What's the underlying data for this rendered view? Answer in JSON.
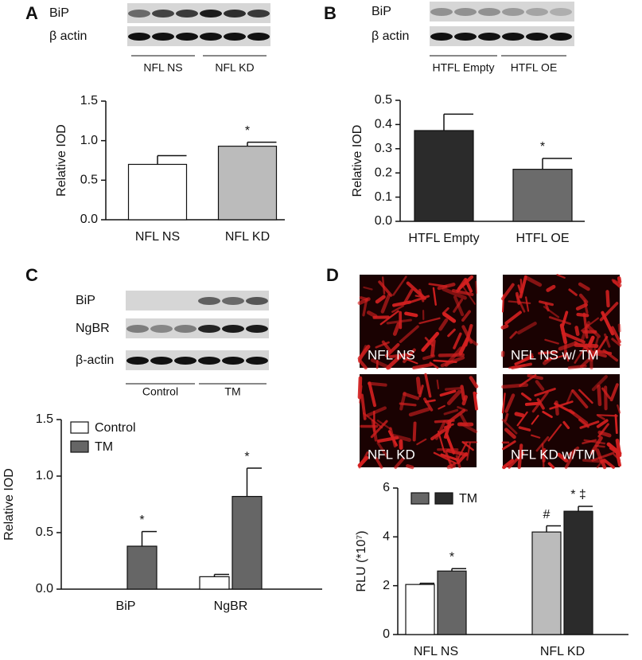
{
  "panels": [
    {
      "letter": "A",
      "blot_labels": [
        "BiP",
        "β actin"
      ],
      "group_labels": [
        "NFL NS",
        "NFL KD"
      ]
    },
    {
      "letter": "B",
      "blot_labels": [
        "BiP",
        "β actin"
      ],
      "group_labels": [
        "HTFL Empty",
        "HTFL OE"
      ]
    },
    {
      "letter": "C",
      "blot_labels": [
        "BiP",
        "NgBR",
        "β-actin"
      ],
      "group_labels": [
        "Control",
        "TM"
      ]
    },
    {
      "letter": "D",
      "image_labels": [
        "NFL NS",
        "NFL NS w/ TM",
        "NFL KD",
        "NFL KD w/TM"
      ]
    }
  ],
  "chart_data": [
    {
      "type": "bar",
      "ylabel": "Relative IOD",
      "categories": [
        "NFL NS",
        "NFL KD"
      ],
      "values": [
        0.7,
        0.93
      ],
      "errors": [
        0.11,
        0.05
      ],
      "colors": [
        "#ffffff",
        "#bbbbbb"
      ],
      "significance": [
        null,
        "*"
      ],
      "ylim": [
        0,
        1.5
      ],
      "yticks": [
        {
          "value": 0,
          "label": "0.0"
        },
        {
          "value": 0.5,
          "label": "0.5"
        },
        {
          "value": 1,
          "label": "1.0"
        },
        {
          "value": 1.5,
          "label": "1.5"
        }
      ]
    },
    {
      "type": "bar",
      "ylabel": "Relative IOD",
      "categories": [
        "HTFL Empty",
        "HTFL OE"
      ],
      "values": [
        0.375,
        0.215
      ],
      "errors": [
        0.068,
        0.045
      ],
      "colors": [
        "#2b2b2b",
        "#6b6b6b"
      ],
      "significance": [
        null,
        "*"
      ],
      "ylim": [
        0,
        0.5
      ],
      "yticks": [
        {
          "value": 0,
          "label": "0.0"
        },
        {
          "value": 0.1,
          "label": "0.1"
        },
        {
          "value": 0.2,
          "label": "0.2"
        },
        {
          "value": 0.3,
          "label": "0.3"
        },
        {
          "value": 0.4,
          "label": "0.4"
        },
        {
          "value": 0.5,
          "label": "0.5"
        }
      ]
    },
    {
      "type": "bar",
      "ylabel": "Relative IOD",
      "categories": [
        "BiP",
        "NgBR"
      ],
      "legend": "top-left",
      "series": [
        {
          "name": "Control",
          "color": "#ffffff",
          "values": [
            0,
            0.11
          ],
          "errors": [
            0,
            0.02
          ],
          "significance": [
            null,
            null
          ]
        },
        {
          "name": "TM",
          "color": "#666666",
          "values": [
            0.38,
            0.82
          ],
          "errors": [
            0.13,
            0.25
          ],
          "significance": [
            "*",
            "*"
          ]
        }
      ],
      "ylim": [
        0,
        1.5
      ],
      "yticks": [
        {
          "value": 0,
          "label": "0.0"
        },
        {
          "value": 0.5,
          "label": "0.5"
        },
        {
          "value": 1,
          "label": "1.0"
        },
        {
          "value": 1.5,
          "label": "1.5"
        }
      ]
    },
    {
      "type": "bar",
      "ylabel": "RLU (*10⁷)",
      "categories": [
        "NFL NS",
        "NFL KD"
      ],
      "legend": "top-left",
      "series": [
        {
          "colors": [
            "#ffffff",
            "#bbbbbb"
          ],
          "values": [
            2.05,
            4.2
          ],
          "errors": [
            0.05,
            0.25
          ],
          "significance": [
            null,
            "#"
          ]
        },
        {
          "name": "TM",
          "colors": [
            "#666666",
            "#2b2b2b"
          ],
          "values": [
            2.6,
            5.05
          ],
          "errors": [
            0.1,
            0.2
          ],
          "significance": [
            "*",
            "* ‡"
          ]
        }
      ],
      "ylim": [
        0,
        6
      ],
      "yticks": [
        0,
        2,
        4,
        6
      ]
    }
  ]
}
